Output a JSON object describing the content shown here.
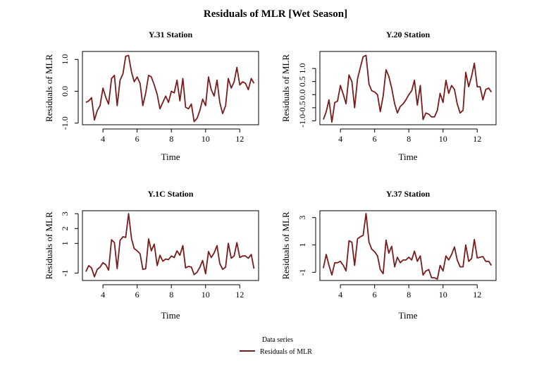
{
  "title": "Residuals of MLR [Wet Season]",
  "series_color": "#7b1c1c",
  "legend": {
    "title": "Data series",
    "entry": "Residuals of MLR",
    "placement": "bottom-center"
  },
  "chart_data": [
    {
      "type": "line",
      "title": "Y.31 Station",
      "xlabel": "Time",
      "ylabel": "Residuals of MLR",
      "xlim": [
        2.8,
        13.1
      ],
      "ylim": [
        -1.05,
        1.25
      ],
      "xticks": [
        4,
        6,
        8,
        10,
        12
      ],
      "xtick_labels": [
        "4",
        "6",
        "8",
        "10",
        "12"
      ],
      "yticks": [
        -1,
        0,
        1
      ],
      "ytick_labels": [
        "-1.0",
        "0.0",
        "1.0"
      ],
      "series": [
        {
          "name": "Residuals of MLR",
          "x": [
            3.0,
            3.17,
            3.33,
            3.5,
            3.67,
            3.83,
            4.0,
            4.17,
            4.33,
            4.5,
            4.67,
            4.83,
            5.0,
            5.17,
            5.33,
            5.5,
            5.67,
            5.83,
            6.0,
            6.17,
            6.33,
            6.5,
            6.67,
            6.83,
            7.0,
            7.17,
            7.33,
            7.5,
            7.67,
            7.83,
            8.0,
            8.17,
            8.33,
            8.5,
            8.67,
            8.83,
            9.0,
            9.17,
            9.33,
            9.5,
            9.67,
            9.83,
            10.0,
            10.17,
            10.33,
            10.5,
            10.67,
            10.83,
            11.0,
            11.17,
            11.33,
            11.5,
            11.67,
            11.83,
            12.0,
            12.17,
            12.33,
            12.5,
            12.67,
            12.83
          ],
          "values": [
            -0.35,
            -0.3,
            -0.2,
            -0.9,
            -0.6,
            -0.45,
            0.1,
            -0.2,
            -0.4,
            0.4,
            0.5,
            -0.45,
            0.35,
            0.55,
            1.1,
            1.12,
            0.6,
            0.3,
            0.45,
            0.25,
            -0.45,
            -0.05,
            0.5,
            0.45,
            0.2,
            -0.1,
            -0.55,
            -0.35,
            -0.15,
            -0.35,
            0.0,
            -0.05,
            0.35,
            -0.3,
            0.4,
            -0.5,
            -0.55,
            -0.4,
            -0.95,
            -0.85,
            -0.6,
            -0.25,
            -0.45,
            0.45,
            0.05,
            -0.15,
            0.35,
            -0.35,
            -0.7,
            -0.45,
            0.4,
            0.1,
            0.3,
            0.75,
            0.2,
            0.3,
            0.25,
            0.05,
            0.4,
            0.25
          ]
        }
      ]
    },
    {
      "type": "line",
      "title": "Y.20 Station",
      "xlabel": "Time",
      "ylabel": "Residuals of MLR",
      "xlim": [
        2.8,
        13.1
      ],
      "ylim": [
        -1.15,
        1.65
      ],
      "xticks": [
        4,
        6,
        8,
        10,
        12
      ],
      "xtick_labels": [
        "4",
        "6",
        "8",
        "10",
        "12"
      ],
      "yticks": [
        -1,
        -0.5,
        0,
        0.5,
        1
      ],
      "ytick_labels": [
        "-1.0",
        "-0.5",
        "0.0",
        "0.5",
        "1.0"
      ],
      "series": [
        {
          "name": "Residuals of MLR",
          "x": [
            3.0,
            3.17,
            3.33,
            3.5,
            3.67,
            3.83,
            4.0,
            4.17,
            4.33,
            4.5,
            4.67,
            4.83,
            5.0,
            5.17,
            5.33,
            5.5,
            5.67,
            5.83,
            6.0,
            6.17,
            6.33,
            6.5,
            6.67,
            6.83,
            7.0,
            7.17,
            7.33,
            7.5,
            7.67,
            7.83,
            8.0,
            8.17,
            8.33,
            8.5,
            8.67,
            8.83,
            9.0,
            9.17,
            9.33,
            9.5,
            9.67,
            9.83,
            10.0,
            10.17,
            10.33,
            10.5,
            10.67,
            10.83,
            11.0,
            11.17,
            11.33,
            11.5,
            11.67,
            11.83,
            12.0,
            12.17,
            12.33,
            12.5,
            12.67,
            12.83
          ],
          "values": [
            -0.95,
            -0.65,
            -0.2,
            -1.05,
            -0.3,
            -0.25,
            0.35,
            0.0,
            -0.35,
            0.75,
            0.5,
            -0.5,
            0.6,
            1.05,
            1.45,
            1.5,
            0.4,
            0.15,
            0.1,
            0.0,
            -0.65,
            -0.05,
            0.95,
            0.7,
            0.25,
            -0.35,
            -0.7,
            -0.45,
            -0.35,
            -0.2,
            0.0,
            0.15,
            0.55,
            -0.4,
            0.35,
            -0.95,
            -0.7,
            -0.75,
            -0.85,
            -0.85,
            -0.6,
            0.05,
            -0.3,
            0.55,
            0.05,
            0.35,
            0.2,
            -0.35,
            -0.7,
            -0.6,
            0.85,
            0.3,
            0.7,
            1.2,
            0.3,
            0.3,
            -0.2,
            0.2,
            0.25,
            0.1
          ]
        }
      ]
    },
    {
      "type": "line",
      "title": "Y.1C Station",
      "xlabel": "Time",
      "ylabel": "Residuals of MLR",
      "xlim": [
        2.8,
        13.1
      ],
      "ylim": [
        -1.5,
        3.2
      ],
      "xticks": [
        4,
        6,
        8,
        10,
        12
      ],
      "xtick_labels": [
        "4",
        "6",
        "8",
        "10",
        "12"
      ],
      "yticks": [
        -1,
        1,
        2,
        3
      ],
      "ytick_labels": [
        "-1",
        "1",
        "2",
        "3"
      ],
      "series": [
        {
          "name": "Residuals of MLR",
          "x": [
            3.0,
            3.17,
            3.33,
            3.5,
            3.67,
            3.83,
            4.0,
            4.17,
            4.33,
            4.5,
            4.67,
            4.83,
            5.0,
            5.17,
            5.33,
            5.5,
            5.67,
            5.83,
            6.0,
            6.17,
            6.33,
            6.5,
            6.67,
            6.83,
            7.0,
            7.17,
            7.33,
            7.5,
            7.67,
            7.83,
            8.0,
            8.17,
            8.33,
            8.5,
            8.67,
            8.83,
            9.0,
            9.17,
            9.33,
            9.5,
            9.67,
            9.83,
            10.0,
            10.17,
            10.33,
            10.5,
            10.67,
            10.83,
            11.0,
            11.17,
            11.33,
            11.5,
            11.67,
            11.83,
            12.0,
            12.17,
            12.33,
            12.5,
            12.67,
            12.83
          ],
          "values": [
            -0.9,
            -0.5,
            -0.65,
            -1.25,
            -0.75,
            -0.6,
            -0.3,
            -0.45,
            -0.8,
            1.25,
            1.05,
            -0.7,
            1.2,
            1.45,
            1.4,
            3.0,
            1.3,
            0.65,
            0.5,
            0.3,
            -0.75,
            -0.7,
            1.3,
            0.5,
            0.95,
            -0.5,
            0.2,
            -0.2,
            -0.05,
            -0.1,
            0.15,
            0.05,
            0.5,
            0.2,
            0.85,
            -0.65,
            -0.55,
            -0.6,
            -1.1,
            -0.95,
            -0.6,
            -0.15,
            -1.05,
            0.45,
            0.05,
            0.35,
            0.85,
            -0.35,
            -0.75,
            -0.6,
            1.0,
            0.0,
            0.15,
            1.05,
            0.05,
            0.15,
            0.15,
            0.0,
            0.25,
            -0.7
          ]
        }
      ]
    },
    {
      "type": "line",
      "title": "Y.37 Station",
      "xlabel": "Time",
      "ylabel": "Residuals of MLR",
      "xlim": [
        2.8,
        13.1
      ],
      "ylim": [
        -1.6,
        3.5
      ],
      "xticks": [
        4,
        6,
        8,
        10,
        12
      ],
      "xtick_labels": [
        "4",
        "6",
        "8",
        "10",
        "12"
      ],
      "yticks": [
        -1,
        1,
        3
      ],
      "ytick_labels": [
        "-1",
        "1",
        "3"
      ],
      "series": [
        {
          "name": "Residuals of MLR",
          "x": [
            3.0,
            3.17,
            3.33,
            3.5,
            3.67,
            3.83,
            4.0,
            4.17,
            4.33,
            4.5,
            4.67,
            4.83,
            5.0,
            5.17,
            5.33,
            5.5,
            5.67,
            5.83,
            6.0,
            6.17,
            6.33,
            6.5,
            6.67,
            6.83,
            7.0,
            7.17,
            7.33,
            7.5,
            7.67,
            7.83,
            8.0,
            8.17,
            8.33,
            8.5,
            8.67,
            8.83,
            9.0,
            9.17,
            9.33,
            9.5,
            9.67,
            9.83,
            10.0,
            10.17,
            10.33,
            10.5,
            10.67,
            10.83,
            11.0,
            11.17,
            11.33,
            11.5,
            11.67,
            11.83,
            12.0,
            12.17,
            12.33,
            12.5,
            12.67,
            12.83
          ],
          "values": [
            -0.7,
            0.3,
            -0.5,
            -1.2,
            -0.3,
            -0.3,
            -0.2,
            -0.5,
            -0.9,
            1.3,
            1.2,
            -0.5,
            1.45,
            1.6,
            1.7,
            3.3,
            1.2,
            0.7,
            0.5,
            0.2,
            -0.8,
            -1.1,
            1.35,
            0.4,
            0.9,
            -0.6,
            0.1,
            -0.3,
            -0.1,
            -0.1,
            0.1,
            -0.1,
            0.55,
            -0.2,
            0.2,
            -1.2,
            -0.9,
            -0.8,
            -1.4,
            -1.4,
            -1.5,
            -0.5,
            -0.9,
            0.2,
            -0.1,
            0.3,
            0.85,
            -0.1,
            -0.6,
            -0.6,
            1.0,
            -0.2,
            0.0,
            1.4,
            0.05,
            0.1,
            0.15,
            -0.2,
            -0.2,
            -0.5
          ]
        }
      ]
    }
  ]
}
